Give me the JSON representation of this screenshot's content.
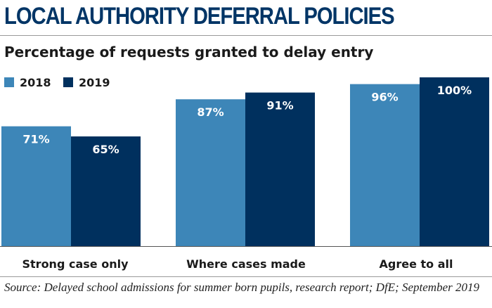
{
  "title": "LOCAL AUTHORITY DEFERRAL POLICIES",
  "subtitle": "Percentage of requests granted to delay entry",
  "source": "Source: Delayed school admissions for summer born pupils, research report; DfE; September 2019",
  "chart_data": {
    "type": "bar",
    "categories": [
      "Strong case only",
      "Where cases made",
      "Agree to all"
    ],
    "series": [
      {
        "name": "2018",
        "values": [
          71,
          87,
          96
        ],
        "labels": [
          "71%",
          "87%",
          "96%"
        ],
        "color": "#3d86b8"
      },
      {
        "name": "2019",
        "values": [
          65,
          91,
          100
        ],
        "labels": [
          "65%",
          "91%",
          "100%"
        ],
        "color": "#00305e"
      }
    ],
    "ylim": [
      0,
      100
    ],
    "grid": false,
    "legend": "top-left"
  }
}
